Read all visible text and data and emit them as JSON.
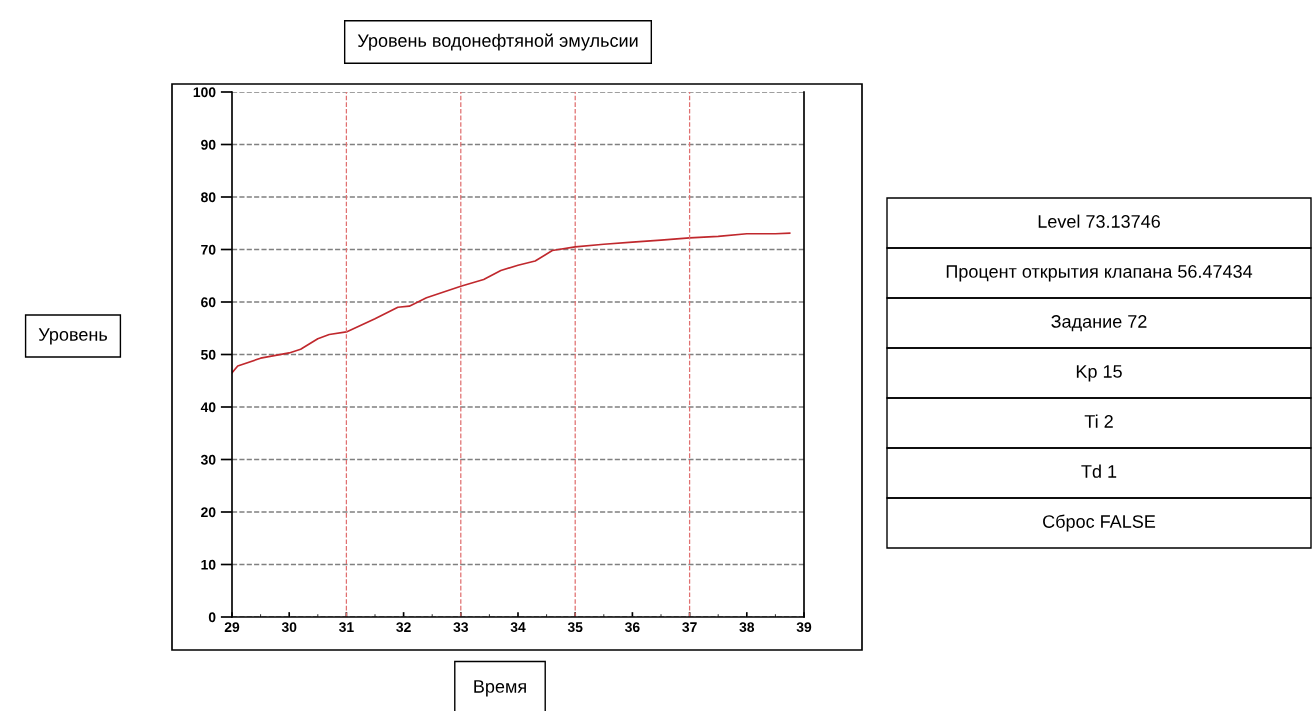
{
  "chart_data": {
    "type": "line",
    "title": "Уровень водонефтяной эмульсии",
    "xlabel": "Время",
    "ylabel": "Уровень",
    "x": [
      29,
      29.1,
      29.5,
      30,
      30.2,
      30.5,
      30.7,
      31,
      31.5,
      31.9,
      32.1,
      32.4,
      33,
      33.4,
      33.7,
      34,
      34.3,
      34.6,
      35,
      35.5,
      36,
      36.5,
      37,
      37.5,
      38,
      38.5,
      38.75
    ],
    "series": [
      {
        "color": "#c0282d",
        "values": [
          46.5,
          47.8,
          49.3,
          50.3,
          51,
          53,
          53.8,
          54.3,
          56.8,
          59,
          59.2,
          60.8,
          63,
          64.3,
          66,
          67,
          67.8,
          69.8,
          70.5,
          71,
          71.4,
          71.8,
          72.2,
          72.5,
          73,
          73,
          73.1
        ]
      }
    ],
    "xlim": [
      29,
      39
    ],
    "xticks": [
      29,
      30,
      31,
      32,
      33,
      34,
      35,
      36,
      37,
      38,
      39
    ],
    "ylim": [
      0,
      100
    ],
    "yticks": [
      0,
      10,
      20,
      30,
      40,
      50,
      60,
      70,
      80,
      90,
      100
    ],
    "grid": "y",
    "legend": false,
    "line_style": "solid",
    "marker": "none",
    "ref_lines": [
      {
        "axis": "x",
        "value": 31,
        "color": "#e07070",
        "line_style": "dashed"
      },
      {
        "axis": "x",
        "value": 33,
        "color": "#e07070",
        "line_style": "dashed"
      },
      {
        "axis": "x",
        "value": 35,
        "color": "#e07070",
        "line_style": "dashed"
      },
      {
        "axis": "x",
        "value": 37,
        "color": "#e07070",
        "line_style": "dashed"
      }
    ],
    "annotations": [
      "Level 73.13746",
      "Процент открытия клапана 56.47434",
      "Задание 72",
      "Kp 15",
      "Ti 2",
      "Td 1",
      "Сброс FALSE"
    ]
  }
}
